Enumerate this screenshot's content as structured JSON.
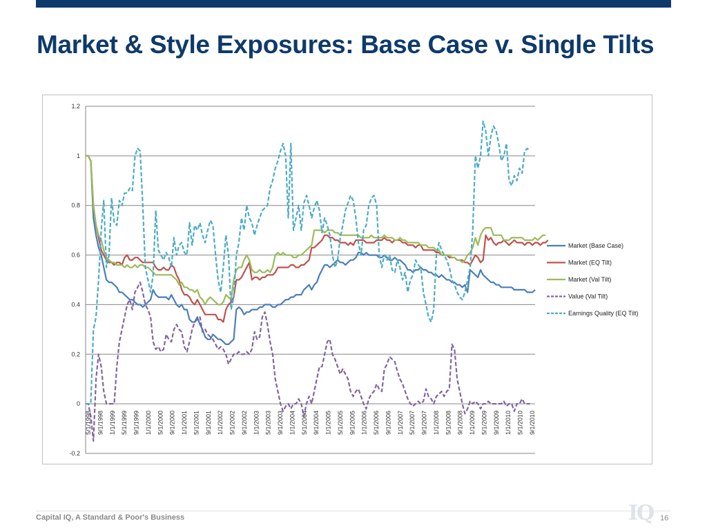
{
  "slide": {
    "title": "Market & Style Exposures: Base Case v. Single Tilts",
    "footer": "Capital IQ, A Standard & Poor's Business",
    "page_number": "16",
    "logo_text": "IQ"
  },
  "chart_data": {
    "type": "line",
    "title": "",
    "xlabel": "",
    "ylabel": "",
    "ylim": [
      -0.2,
      1.2
    ],
    "yticks": [
      1.2,
      1,
      0.8,
      0.6,
      0.4,
      0.2,
      0,
      -0.2
    ],
    "grid": "horizontal",
    "legend_position": "right",
    "x_tick_labels": [
      "5/1/1998",
      "9/1/1998",
      "1/1/1999",
      "5/1/1999",
      "9/1/1999",
      "1/1/2000",
      "5/1/2000",
      "9/1/2000",
      "1/1/2001",
      "5/1/2001",
      "9/1/2001",
      "1/1/2002",
      "5/1/2002",
      "9/1/2002",
      "1/1/2003",
      "5/1/2003",
      "9/1/2003",
      "1/1/2004",
      "5/1/2004",
      "9/1/2004",
      "1/1/2005",
      "5/1/2005",
      "9/1/2005",
      "1/1/2006",
      "5/1/2006",
      "9/1/2006",
      "1/1/2007",
      "5/1/2007",
      "9/1/2007",
      "1/1/2008",
      "5/1/2008",
      "9/1/2008",
      "1/1/2009",
      "5/1/2009",
      "9/1/2009",
      "1/1/2010",
      "5/1/2010",
      "9/1/2010"
    ],
    "series": [
      {
        "name": "Market (Base Case)",
        "color": "#4a7ebb",
        "dash": "solid",
        "values": [
          1,
          1,
          0.98,
          0.75,
          0.68,
          0.63,
          0.6,
          0.55,
          0.5,
          0.49,
          0.49,
          0.48,
          0.47,
          0.45,
          0.45,
          0.44,
          0.43,
          0.42,
          0.42,
          0.41,
          0.4,
          0.4,
          0.39,
          0.4,
          0.41,
          0.42,
          0.46,
          0.44,
          0.43,
          0.43,
          0.43,
          0.43,
          0.42,
          0.44,
          0.42,
          0.4,
          0.39,
          0.4,
          0.38,
          0.38,
          0.34,
          0.33,
          0.33,
          0.35,
          0.32,
          0.3,
          0.27,
          0.26,
          0.26,
          0.28,
          0.27,
          0.26,
          0.26,
          0.25,
          0.24,
          0.24,
          0.25,
          0.26,
          0.38,
          0.39,
          0.38,
          0.36,
          0.37,
          0.37,
          0.38,
          0.38,
          0.38,
          0.39,
          0.39,
          0.4,
          0.4,
          0.4,
          0.39,
          0.39,
          0.4,
          0.4,
          0.41,
          0.42,
          0.42,
          0.43,
          0.43,
          0.44,
          0.44,
          0.44,
          0.46,
          0.47,
          0.48,
          0.46,
          0.48,
          0.49,
          0.52,
          0.54,
          0.56,
          0.56,
          0.55,
          0.56,
          0.57,
          0.58,
          0.57,
          0.57,
          0.56,
          0.57,
          0.58,
          0.58,
          0.59,
          0.61,
          0.61,
          0.6,
          0.61,
          0.6,
          0.6,
          0.6,
          0.6,
          0.59,
          0.59,
          0.6,
          0.59,
          0.58,
          0.58,
          0.59,
          0.58,
          0.58,
          0.57,
          0.56,
          0.54,
          0.54,
          0.53,
          0.54,
          0.54,
          0.55,
          0.54,
          0.54,
          0.53,
          0.53,
          0.52,
          0.52,
          0.51,
          0.52,
          0.51,
          0.5,
          0.5,
          0.49,
          0.49,
          0.48,
          0.48,
          0.47,
          0.48,
          0.45,
          0.54,
          0.53,
          0.52,
          0.51,
          0.54,
          0.52,
          0.51,
          0.5,
          0.49,
          0.49,
          0.48,
          0.48,
          0.47,
          0.47,
          0.47,
          0.47,
          0.47,
          0.46,
          0.46,
          0.46,
          0.46,
          0.46,
          0.45,
          0.45,
          0.45,
          0.46
        ]
      },
      {
        "name": "Market (EQ Tilt)",
        "color": "#c0504d",
        "dash": "solid",
        "values": [
          1,
          1,
          0.98,
          0.8,
          0.72,
          0.67,
          0.62,
          0.6,
          0.58,
          0.57,
          0.57,
          0.56,
          0.57,
          0.57,
          0.56,
          0.59,
          0.6,
          0.58,
          0.58,
          0.59,
          0.59,
          0.58,
          0.57,
          0.57,
          0.57,
          0.57,
          0.57,
          0.55,
          0.54,
          0.54,
          0.55,
          0.54,
          0.54,
          0.56,
          0.55,
          0.52,
          0.5,
          0.46,
          0.44,
          0.44,
          0.43,
          0.41,
          0.4,
          0.42,
          0.4,
          0.38,
          0.36,
          0.36,
          0.36,
          0.36,
          0.36,
          0.34,
          0.34,
          0.33,
          0.38,
          0.4,
          0.41,
          0.43,
          0.5,
          0.5,
          0.51,
          0.53,
          0.55,
          0.57,
          0.5,
          0.51,
          0.51,
          0.5,
          0.51,
          0.51,
          0.52,
          0.52,
          0.52,
          0.53,
          0.55,
          0.55,
          0.55,
          0.55,
          0.55,
          0.56,
          0.56,
          0.55,
          0.55,
          0.56,
          0.56,
          0.57,
          0.58,
          0.63,
          0.63,
          0.64,
          0.65,
          0.66,
          0.68,
          0.68,
          0.67,
          0.67,
          0.66,
          0.66,
          0.65,
          0.65,
          0.65,
          0.64,
          0.65,
          0.64,
          0.66,
          0.66,
          0.66,
          0.66,
          0.65,
          0.65,
          0.65,
          0.65,
          0.66,
          0.66,
          0.66,
          0.67,
          0.66,
          0.66,
          0.65,
          0.66,
          0.66,
          0.66,
          0.65,
          0.65,
          0.64,
          0.64,
          0.64,
          0.63,
          0.64,
          0.64,
          0.62,
          0.62,
          0.62,
          0.62,
          0.62,
          0.61,
          0.61,
          0.6,
          0.6,
          0.6,
          0.59,
          0.59,
          0.59,
          0.58,
          0.58,
          0.58,
          0.57,
          0.57,
          0.56,
          0.58,
          0.6,
          0.59,
          0.57,
          0.58,
          0.68,
          0.66,
          0.67,
          0.65,
          0.64,
          0.65,
          0.65,
          0.66,
          0.65,
          0.64,
          0.65,
          0.66,
          0.65,
          0.65,
          0.65,
          0.64,
          0.65,
          0.65,
          0.64,
          0.65,
          0.65,
          0.64,
          0.65,
          0.65,
          0.66
        ]
      },
      {
        "name": "Market (Val Tilt)",
        "color": "#9bbb59",
        "dash": "solid",
        "values": [
          1,
          1,
          0.98,
          0.8,
          0.72,
          0.68,
          0.66,
          0.62,
          0.59,
          0.58,
          0.57,
          0.57,
          0.56,
          0.56,
          0.56,
          0.55,
          0.56,
          0.55,
          0.55,
          0.56,
          0.55,
          0.56,
          0.56,
          0.55,
          0.55,
          0.54,
          0.53,
          0.52,
          0.52,
          0.52,
          0.52,
          0.52,
          0.52,
          0.52,
          0.51,
          0.5,
          0.48,
          0.49,
          0.47,
          0.47,
          0.46,
          0.46,
          0.45,
          0.46,
          0.43,
          0.42,
          0.4,
          0.42,
          0.43,
          0.42,
          0.41,
          0.4,
          0.4,
          0.41,
          0.44,
          0.43,
          0.42,
          0.5,
          0.54,
          0.55,
          0.55,
          0.58,
          0.6,
          0.58,
          0.54,
          0.53,
          0.53,
          0.54,
          0.53,
          0.53,
          0.54,
          0.53,
          0.55,
          0.6,
          0.61,
          0.6,
          0.61,
          0.6,
          0.6,
          0.6,
          0.59,
          0.59,
          0.6,
          0.6,
          0.61,
          0.62,
          0.63,
          0.64,
          0.7,
          0.7,
          0.7,
          0.7,
          0.69,
          0.7,
          0.7,
          0.7,
          0.69,
          0.69,
          0.68,
          0.68,
          0.68,
          0.68,
          0.68,
          0.68,
          0.68,
          0.68,
          0.67,
          0.67,
          0.67,
          0.67,
          0.68,
          0.67,
          0.67,
          0.67,
          0.67,
          0.68,
          0.67,
          0.67,
          0.67,
          0.66,
          0.66,
          0.67,
          0.66,
          0.66,
          0.65,
          0.65,
          0.65,
          0.65,
          0.65,
          0.64,
          0.64,
          0.64,
          0.63,
          0.63,
          0.63,
          0.62,
          0.62,
          0.6,
          0.6,
          0.6,
          0.6,
          0.59,
          0.59,
          0.58,
          0.58,
          0.57,
          0.58,
          0.6,
          0.61,
          0.63,
          0.67,
          0.64,
          0.68,
          0.7,
          0.71,
          0.71,
          0.71,
          0.68,
          0.68,
          0.68,
          0.68,
          0.66,
          0.66,
          0.66,
          0.67,
          0.67,
          0.67,
          0.67,
          0.67,
          0.66,
          0.66,
          0.66,
          0.66,
          0.67,
          0.66,
          0.67,
          0.68,
          0.68
        ]
      },
      {
        "name": "Value (Val Tilt)",
        "color": "#8064a2",
        "dash": "dashed",
        "values": [
          0,
          0,
          -0.05,
          -0.15,
          0.1,
          0.2,
          0.15,
          0.05,
          0,
          0,
          0,
          0,
          0.15,
          0.25,
          0.3,
          0.35,
          0.4,
          0.42,
          0.38,
          0.45,
          0.47,
          0.49,
          0.45,
          0.4,
          0.38,
          0.35,
          0.25,
          0.22,
          0.23,
          0.21,
          0.22,
          0.28,
          0.26,
          0.25,
          0.3,
          0.32,
          0.3,
          0.29,
          0.23,
          0.21,
          0.25,
          0.3,
          0.33,
          0.34,
          0.35,
          0.29,
          0.3,
          0.28,
          0.27,
          0.26,
          0.24,
          0.22,
          0.23,
          0.22,
          0.2,
          0.16,
          0.18,
          0.2,
          0.2,
          0.21,
          0.2,
          0.2,
          0.21,
          0.2,
          0.22,
          0.29,
          0.26,
          0.27,
          0.35,
          0.37,
          0.32,
          0.25,
          0.2,
          0.1,
          0.05,
          0,
          -0.03,
          -0.01,
          0,
          -0.02,
          0,
          0,
          0.02,
          0,
          -0.05,
          0,
          0.03,
          0,
          0.05,
          0.1,
          0.15,
          0.15,
          0.2,
          0.25,
          0.26,
          0.2,
          0.18,
          0.15,
          0.12,
          0.14,
          0.12,
          0.1,
          0.05,
          0.03,
          0.05,
          0.06,
          0.03,
          0,
          -0.02,
          0.02,
          0.04,
          0.05,
          0.08,
          0.06,
          0.05,
          0.14,
          0.16,
          0.19,
          0.18,
          0.17,
          0.13,
          0.1,
          0.08,
          0.05,
          0.02,
          0,
          -0.01,
          0,
          0.01,
          0,
          0.01,
          0.06,
          0.03,
          0.02,
          0,
          0.03,
          0.04,
          0.05,
          0.03,
          0.05,
          0.06,
          0.24,
          0.22,
          0.1,
          0.05,
          0,
          -0.04,
          -0.02,
          0.01,
          0,
          0.01,
          0,
          -0.02,
          0,
          0,
          0.01,
          0,
          0,
          0,
          0,
          0,
          0.01,
          -0.01,
          0,
          0,
          -0.03,
          0,
          0,
          0.02,
          0,
          0,
          0
        ]
      },
      {
        "name": "Earnings Quality (EQ Tilt)",
        "color": "#4bacc6",
        "dash": "dashed",
        "values": [
          0,
          0,
          0,
          0.3,
          0.35,
          0.5,
          0.7,
          0.82,
          0.55,
          0.6,
          0.83,
          0.73,
          0.72,
          0.82,
          0.8,
          0.85,
          0.85,
          0.87,
          0.86,
          1,
          1.03,
          1.02,
          0.8,
          0.55,
          0.5,
          0.45,
          0.52,
          0.78,
          0.62,
          0.6,
          0.58,
          0.61,
          0.59,
          0.55,
          0.67,
          0.6,
          0.64,
          0.65,
          0.61,
          0.6,
          0.73,
          0.64,
          0.72,
          0.7,
          0.73,
          0.68,
          0.65,
          0.7,
          0.74,
          0.72,
          0.6,
          0.5,
          0.45,
          0.55,
          0.68,
          0.6,
          0.38,
          0.43,
          0.6,
          0.65,
          0.75,
          0.7,
          0.8,
          0.75,
          0.73,
          0.68,
          0.72,
          0.75,
          0.78,
          0.79,
          0.8,
          0.87,
          0.9,
          0.95,
          0.98,
          1.02,
          1.05,
          1,
          0.75,
          1.05,
          0.7,
          0.75,
          0.8,
          0.7,
          0.81,
          0.84,
          0.8,
          0.75,
          0.79,
          0.82,
          0.78,
          0.69,
          0.75,
          0.72,
          0.68,
          0.6,
          0.55,
          0.58,
          0.67,
          0.72,
          0.78,
          0.81,
          0.84,
          0.82,
          0.75,
          0.65,
          0.6,
          0.7,
          0.72,
          0.8,
          0.83,
          0.84,
          0.8,
          0.6,
          0.55,
          0.6,
          0.58,
          0.6,
          0.54,
          0.53,
          0.58,
          0.55,
          0.5,
          0.53,
          0.45,
          0.5,
          0.52,
          0.58,
          0.56,
          0.55,
          0.45,
          0.4,
          0.35,
          0.33,
          0.38,
          0.6,
          0.65,
          0.62,
          0.6,
          0.58,
          0.55,
          0.5,
          0.48,
          0.45,
          0.43,
          0.42,
          0.45,
          0.5,
          0.55,
          0.7,
          1,
          0.95,
          1,
          1.14,
          1.1,
          1,
          1.08,
          1.12,
          1.1,
          1.05,
          0.98,
          1,
          1.05,
          0.9,
          0.88,
          0.92,
          0.9,
          0.95,
          0.93,
          1.02,
          1.03,
          1.02
        ]
      }
    ]
  }
}
